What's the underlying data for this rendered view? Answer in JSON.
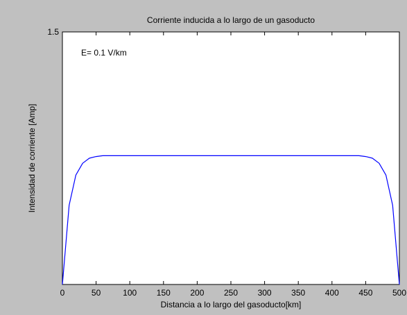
{
  "chart_data": {
    "type": "line",
    "title": "Corriente inducida a lo largo de un gasoducto",
    "xlabel": "Distancia a lo largo del gasoducto[km]",
    "ylabel": "Intensidad de corriente [Amp]",
    "annotation": "E= 0.1 V/km",
    "xlim": [
      0,
      500
    ],
    "ylim": [
      0,
      1.5
    ],
    "xticks": [
      0,
      50,
      100,
      150,
      200,
      250,
      300,
      350,
      400,
      450,
      500
    ],
    "xtick_labels": [
      "0",
      "50",
      "100",
      "150",
      "200",
      "250",
      "300",
      "350",
      "400",
      "450",
      "500"
    ],
    "yticks": [
      1.5
    ],
    "ytick_labels": [
      "1.5"
    ],
    "grid": false,
    "series": [
      {
        "color": "#0000ff",
        "x": [
          0,
          10,
          20,
          30,
          40,
          50,
          60,
          80,
          100,
          150,
          200,
          250,
          300,
          350,
          400,
          420,
          440,
          450,
          460,
          470,
          480,
          490,
          500
        ],
        "y": [
          0,
          0.47,
          0.65,
          0.72,
          0.75,
          0.76,
          0.765,
          0.765,
          0.765,
          0.765,
          0.765,
          0.765,
          0.765,
          0.765,
          0.765,
          0.765,
          0.765,
          0.76,
          0.75,
          0.72,
          0.65,
          0.47,
          0
        ]
      }
    ]
  }
}
